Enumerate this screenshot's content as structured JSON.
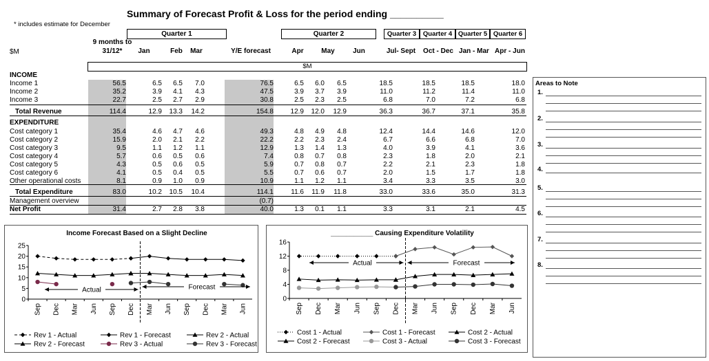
{
  "title": "Summary of Forecast Profit & Loss for the period ending __________",
  "note": "* includes estimate for December",
  "unit_left": "$M",
  "unit_band": "$M",
  "col9": "9 months to",
  "col9b": "31/12*",
  "quarters": [
    "Quarter 1",
    "Quarter 2",
    "Quarter 3",
    "Quarter 4",
    "Quarter 5",
    "Quarter 6"
  ],
  "columns": [
    "Jan",
    "Feb",
    "Mar",
    "Y/E forecast",
    "Apr",
    "May",
    "Jun",
    "Jul- Sept",
    "Oct - Dec",
    "Jan - Mar",
    "Apr - Jun"
  ],
  "sections": {
    "income": "INCOME",
    "expenditure": "EXPENDITURE"
  },
  "rows": {
    "inc1": {
      "label": "Income 1",
      "values": [
        "56.5",
        "6.5",
        "6.5",
        "7.0",
        "76.5",
        "6.5",
        "6.0",
        "6.5",
        "18.5",
        "18.5",
        "18.5",
        "18.0"
      ]
    },
    "inc2": {
      "label": "Income 2",
      "values": [
        "35.2",
        "3.9",
        "4.1",
        "4.3",
        "47.5",
        "3.9",
        "3.7",
        "3.9",
        "11.0",
        "11.2",
        "11.4",
        "11.0"
      ]
    },
    "inc3": {
      "label": "Income 3",
      "values": [
        "22.7",
        "2.5",
        "2.7",
        "2.9",
        "30.8",
        "2.5",
        "2.3",
        "2.5",
        "6.8",
        "7.0",
        "7.2",
        "6.8"
      ]
    },
    "rev": {
      "label": "Total Revenue",
      "values": [
        "114.4",
        "12.9",
        "13.3",
        "14.2",
        "154.8",
        "12.9",
        "12.0",
        "12.9",
        "36.3",
        "36.7",
        "37.1",
        "35.8"
      ]
    },
    "c1": {
      "label": "Cost category 1",
      "values": [
        "35.4",
        "4.6",
        "4.7",
        "4.6",
        "49.3",
        "4.8",
        "4.9",
        "4.8",
        "12.4",
        "14.4",
        "14.6",
        "12.0"
      ]
    },
    "c2": {
      "label": "Cost category 2",
      "values": [
        "15.9",
        "2.0",
        "2.1",
        "2.2",
        "22.2",
        "2.2",
        "2.3",
        "2.4",
        "6.7",
        "6.6",
        "6.8",
        "7.0"
      ]
    },
    "c3": {
      "label": "Cost category 3",
      "values": [
        "9.5",
        "1.1",
        "1.2",
        "1.1",
        "12.9",
        "1.3",
        "1.4",
        "1.3",
        "4.0",
        "3.9",
        "4.1",
        "3.6"
      ]
    },
    "c4": {
      "label": "Cost category 4",
      "values": [
        "5.7",
        "0.6",
        "0.5",
        "0.6",
        "7.4",
        "0.8",
        "0.7",
        "0.8",
        "2.3",
        "1.8",
        "2.0",
        "2.1"
      ]
    },
    "c5": {
      "label": "Cost category 5",
      "values": [
        "4.3",
        "0.5",
        "0.6",
        "0.5",
        "5.9",
        "0.7",
        "0.8",
        "0.7",
        "2.2",
        "2.1",
        "2.3",
        "1.8"
      ]
    },
    "c6": {
      "label": "Cost category 6",
      "values": [
        "4.1",
        "0.5",
        "0.4",
        "0.5",
        "5.5",
        "0.7",
        "0.6",
        "0.7",
        "2.0",
        "1.5",
        "1.7",
        "1.8"
      ]
    },
    "oth": {
      "label": "Other operational costs",
      "values": [
        "8.1",
        "0.9",
        "1.0",
        "0.9",
        "10.9",
        "1.1",
        "1.2",
        "1.1",
        "3.4",
        "3.3",
        "3.5",
        "3.0"
      ]
    },
    "texp": {
      "label": "Total Expenditure",
      "values": [
        "83.0",
        "10.2",
        "10.5",
        "10.4",
        "114.1",
        "11.6",
        "11.9",
        "11.8",
        "33.0",
        "33.6",
        "35.0",
        "31.3"
      ]
    },
    "mgmt": {
      "label": "Management overview",
      "values": [
        "",
        "",
        "",
        "",
        "(0.7)",
        "",
        "",
        "",
        "",
        "",
        "",
        ""
      ]
    },
    "np": {
      "label": "Net Profit",
      "values": [
        "31.4",
        "2.7",
        "2.8",
        "3.8",
        "40.0",
        "1.3",
        "0.1",
        "1.1",
        "3.3",
        "3.1",
        "2.1",
        "4.5"
      ]
    }
  },
  "areas": {
    "title": "Areas to Note",
    "items": [
      "1.",
      "2.",
      "3.",
      "4.",
      "5.",
      "6.",
      "7.",
      "8."
    ]
  },
  "chart_data": [
    {
      "type": "line",
      "title": "Income Forecast Based on a Slight Decline",
      "x": [
        "Sep",
        "Dec",
        "Mar",
        "Jun",
        "Sep",
        "Dec",
        "Mar",
        "Jun",
        "Sep",
        "Dec",
        "Mar",
        "Jun"
      ],
      "ylim": [
        0,
        25
      ],
      "yticks": [
        0,
        5,
        10,
        15,
        20,
        25
      ],
      "divider_after_index": 5,
      "annotations": [
        "Actual",
        "Forecast"
      ],
      "series": [
        {
          "name": "Rev 1 - Actual",
          "values": [
            20,
            19,
            18.5,
            18.5,
            18.5,
            19,
            null,
            null,
            null,
            null,
            null,
            null
          ],
          "color": "#000000",
          "dash": "4,3",
          "marker": "diamond"
        },
        {
          "name": "Rev 1  - Forecast",
          "values": [
            null,
            null,
            null,
            null,
            null,
            19,
            20,
            19,
            18.5,
            18.5,
            18.5,
            18
          ],
          "color": "#000000",
          "dash": "",
          "marker": "diamond"
        },
        {
          "name": "Rev 2 - Actual",
          "values": [
            12,
            11.5,
            11,
            11,
            11.5,
            12,
            null,
            null,
            null,
            null,
            null,
            null
          ],
          "color": "#000000",
          "dash": "",
          "marker": "triangle"
        },
        {
          "name": "Rev 2  - Forecast",
          "values": [
            null,
            null,
            null,
            null,
            null,
            12,
            12,
            11.5,
            11,
            11,
            11.5,
            11
          ],
          "color": "#000000",
          "dash": "",
          "marker": "triangle"
        },
        {
          "name": "Rev 3 - Actual",
          "values": [
            8,
            7,
            null,
            null,
            7,
            null,
            null,
            null,
            null,
            null,
            null,
            null
          ],
          "color": "#7a2a4a",
          "dash": "",
          "marker": "circle"
        },
        {
          "name": "Rev 3 - Forecast",
          "values": [
            null,
            null,
            null,
            null,
            null,
            7.5,
            8,
            7,
            null,
            null,
            7,
            6.5
          ],
          "color": "#333333",
          "dash": "",
          "marker": "circle"
        }
      ],
      "legend": "bottom"
    },
    {
      "type": "line",
      "title": "___________  Causing Expenditure Volatility",
      "x": [
        "Sep",
        "Dec",
        "Mar",
        "Jun",
        "Sep",
        "Dec",
        "Mar",
        "Jun",
        "Sep",
        "Dec",
        "Mar",
        "Jun"
      ],
      "ylim": [
        0,
        16
      ],
      "yticks": [
        0,
        4,
        8,
        12,
        16
      ],
      "divider_after_index": 5,
      "annotations": [
        "Actual",
        "Forecast"
      ],
      "series": [
        {
          "name": "Cost 1 - Actual",
          "values": [
            12,
            12,
            12,
            12,
            12,
            12,
            null,
            null,
            null,
            null,
            null,
            null
          ],
          "color": "#000000",
          "dash": "1,2",
          "marker": "diamond"
        },
        {
          "name": "Cost 1 - Forecast",
          "values": [
            null,
            null,
            null,
            null,
            null,
            12,
            14,
            14.5,
            12.5,
            14.5,
            14.6,
            12
          ],
          "color": "#555555",
          "dash": "",
          "marker": "diamond"
        },
        {
          "name": "Cost 2 - Actual",
          "values": [
            5.5,
            5.2,
            5.3,
            5.2,
            5.3,
            5.3,
            null,
            null,
            null,
            null,
            null,
            null
          ],
          "color": "#000000",
          "dash": "",
          "marker": "triangle"
        },
        {
          "name": "Cost 2 - Forecast",
          "values": [
            null,
            null,
            null,
            null,
            null,
            5.3,
            6.3,
            6.8,
            6.8,
            6.6,
            6.8,
            7
          ],
          "color": "#000000",
          "dash": "",
          "marker": "triangle"
        },
        {
          "name": "Cost 3 - Actual",
          "values": [
            3,
            2.8,
            3,
            3.2,
            3.3,
            3.2,
            null,
            null,
            null,
            null,
            null,
            null
          ],
          "color": "#999999",
          "dash": "",
          "marker": "circle"
        },
        {
          "name": "Cost 3 - Forecast",
          "values": [
            null,
            null,
            null,
            null,
            null,
            3.2,
            3.4,
            4,
            4,
            3.9,
            4.1,
            3.6
          ],
          "color": "#333333",
          "dash": "",
          "marker": "circle"
        }
      ],
      "legend": "bottom"
    }
  ]
}
